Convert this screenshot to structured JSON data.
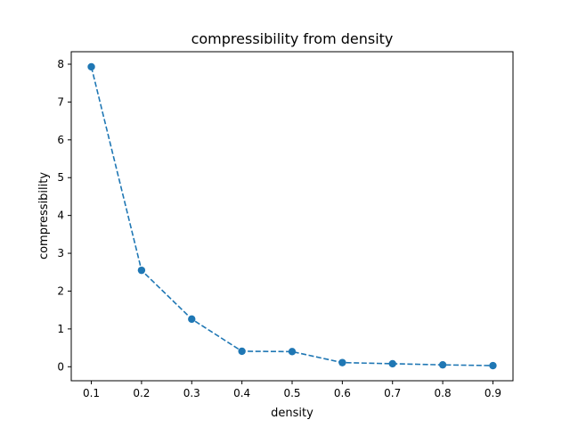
{
  "chart_data": {
    "type": "line",
    "title": "compressibility from density",
    "xlabel": "density",
    "ylabel": "compressibility",
    "x": [
      0.1,
      0.2,
      0.3,
      0.4,
      0.5,
      0.6,
      0.7,
      0.8,
      0.9
    ],
    "series": [
      {
        "values": [
          7.93,
          2.55,
          1.26,
          0.41,
          0.4,
          0.11,
          0.08,
          0.05,
          0.03
        ],
        "color": "#1f77b4",
        "line_style": "dashed",
        "marker": "circle"
      }
    ],
    "xlim": [
      0.06,
      0.94
    ],
    "ylim": [
      -0.37,
      8.33
    ],
    "xticks": [
      "0.1",
      "0.2",
      "0.3",
      "0.4",
      "0.5",
      "0.6",
      "0.7",
      "0.8",
      "0.9"
    ],
    "yticks": [
      "0",
      "1",
      "2",
      "3",
      "4",
      "5",
      "6",
      "7",
      "8"
    ],
    "grid": false,
    "legend": "none"
  }
}
